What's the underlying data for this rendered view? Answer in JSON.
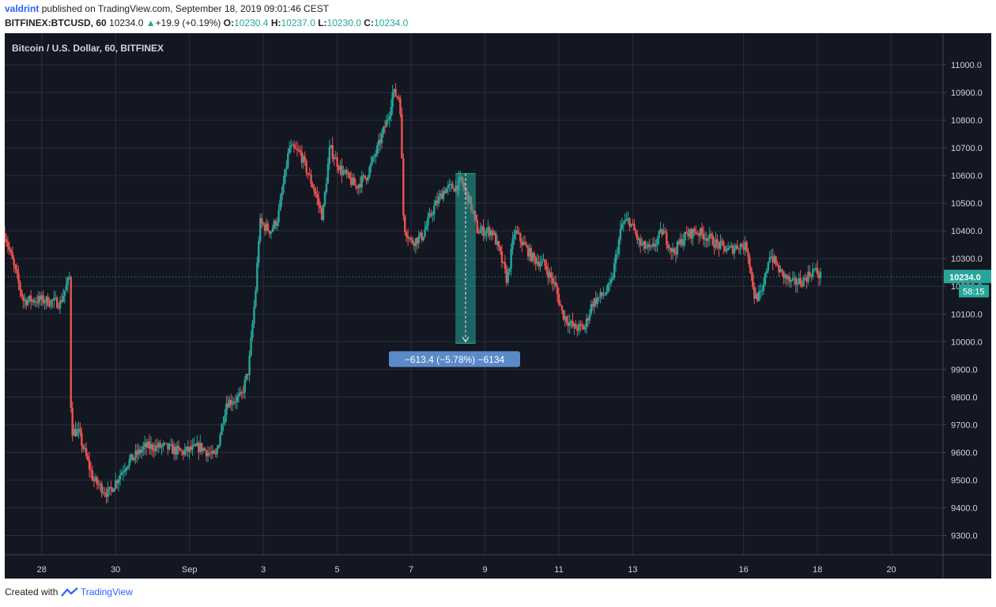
{
  "header": {
    "user": "valdrint",
    "published": "published on TradingView.com, September 18, 2019 09:01:46 CEST",
    "symbol": "BITFINEX:BTCUSD, 60",
    "last": "10234.0",
    "change": "+19.9 (+0.19%)",
    "o_label": "O:",
    "o_value": "10230.4",
    "h_label": "H:",
    "h_value": "10237.0",
    "l_label": "L:",
    "l_value": "10230.0",
    "c_label": "C:",
    "c_value": "10234.0"
  },
  "footer": {
    "created": "Created with",
    "brand": "TradingView"
  },
  "colors": {
    "background": "#131722",
    "grid": "#2a2e39",
    "up": "#26a69a",
    "down": "#ef5350",
    "axis_text": "#d1d4dc",
    "measure": "#26a69a",
    "measure_label": "#5b8ac9"
  },
  "chart_data": {
    "type": "candlestick",
    "title": "Bitcoin / U.S. Dollar, 60, BITFINEX",
    "interval": "60",
    "ylim": [
      9230,
      11080
    ],
    "y_ticks": [
      9300,
      9400,
      9500,
      9600,
      9700,
      9800,
      9900,
      10000,
      10100,
      10200,
      10300,
      10400,
      10500,
      10600,
      10700,
      10800,
      10900,
      11000
    ],
    "y_tick_labels": [
      "9300.0",
      "9400.0",
      "9500.0",
      "9600.0",
      "9700.0",
      "9800.0",
      "9900.0",
      "10000.0",
      "10100.0",
      "10200.0",
      "10300.0",
      "10400.0",
      "10500.0",
      "10600.0",
      "10700.0",
      "10800.0",
      "10900.0",
      "11000.0"
    ],
    "x_ticks": [
      28,
      30,
      32,
      34,
      36,
      38,
      40,
      42,
      44,
      46,
      48,
      50,
      52
    ],
    "x_tick_labels": [
      "28",
      "30",
      "Sep",
      "3",
      "5",
      "7",
      "9",
      "11",
      "13",
      "16",
      "18",
      "20"
    ],
    "x_tick_positions": [
      28,
      30,
      32,
      34,
      36,
      38,
      40,
      42,
      44,
      47,
      49,
      51
    ],
    "xlim": [
      27.0,
      52.4
    ],
    "grid": true,
    "last_price": 10234.0,
    "last_price_label": "10234.0",
    "countdown_label": "58:15",
    "key_points": [
      [
        27.0,
        10390
      ],
      [
        27.5,
        10150
      ],
      [
        28.0,
        10150
      ],
      [
        28.5,
        10140
      ],
      [
        28.75,
        10230
      ],
      [
        28.8,
        9680
      ],
      [
        29.0,
        9670
      ],
      [
        29.4,
        9500
      ],
      [
        29.8,
        9450
      ],
      [
        30.3,
        9560
      ],
      [
        30.8,
        9620
      ],
      [
        31.3,
        9620
      ],
      [
        31.8,
        9600
      ],
      [
        32.3,
        9620
      ],
      [
        32.7,
        9580
      ],
      [
        33.0,
        9780
      ],
      [
        33.4,
        9800
      ],
      [
        33.6,
        9900
      ],
      [
        33.8,
        10200
      ],
      [
        33.9,
        10430
      ],
      [
        34.2,
        10400
      ],
      [
        34.4,
        10450
      ],
      [
        34.7,
        10700
      ],
      [
        35.0,
        10680
      ],
      [
        35.4,
        10540
      ],
      [
        35.6,
        10450
      ],
      [
        35.8,
        10700
      ],
      [
        36.1,
        10620
      ],
      [
        36.5,
        10560
      ],
      [
        36.8,
        10600
      ],
      [
        37.1,
        10700
      ],
      [
        37.4,
        10820
      ],
      [
        37.5,
        10900
      ],
      [
        37.7,
        10880
      ],
      [
        37.8,
        10420
      ],
      [
        38.0,
        10360
      ],
      [
        38.3,
        10380
      ],
      [
        38.6,
        10480
      ],
      [
        38.9,
        10550
      ],
      [
        39.2,
        10560
      ],
      [
        39.35,
        10580
      ],
      [
        39.6,
        10500
      ],
      [
        39.8,
        10400
      ],
      [
        40.2,
        10400
      ],
      [
        40.4,
        10320
      ],
      [
        40.6,
        10220
      ],
      [
        40.8,
        10400
      ],
      [
        41.0,
        10360
      ],
      [
        41.3,
        10300
      ],
      [
        41.6,
        10280
      ],
      [
        41.9,
        10200
      ],
      [
        42.1,
        10100
      ],
      [
        42.4,
        10050
      ],
      [
        42.7,
        10050
      ],
      [
        42.9,
        10140
      ],
      [
        43.2,
        10170
      ],
      [
        43.4,
        10200
      ],
      [
        43.7,
        10420
      ],
      [
        43.9,
        10440
      ],
      [
        44.2,
        10350
      ],
      [
        44.5,
        10330
      ],
      [
        44.8,
        10400
      ],
      [
        45.1,
        10320
      ],
      [
        45.4,
        10380
      ],
      [
        45.7,
        10400
      ],
      [
        46.0,
        10380
      ],
      [
        46.3,
        10350
      ],
      [
        46.6,
        10330
      ],
      [
        46.9,
        10350
      ],
      [
        47.1,
        10340
      ],
      [
        47.3,
        10160
      ],
      [
        47.5,
        10170
      ],
      [
        47.7,
        10320
      ],
      [
        48.0,
        10250
      ],
      [
        48.3,
        10210
      ],
      [
        48.6,
        10220
      ],
      [
        48.9,
        10260
      ],
      [
        49.1,
        10234
      ]
    ],
    "measure": {
      "x_start": 39.2,
      "x_end": 39.75,
      "y_top": 10607,
      "y_bottom": 9994,
      "label": "−613.4 (−5.78%) −6134"
    }
  }
}
